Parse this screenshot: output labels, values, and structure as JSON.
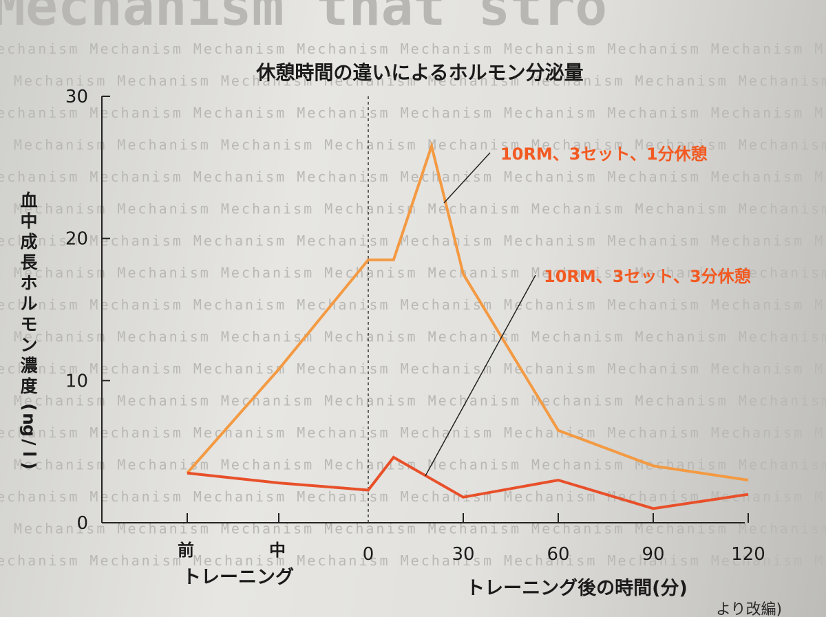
{
  "page": {
    "watermark_word": "Mechanism",
    "watermark_header": "Mechanism that stro",
    "footer_fragment": "より改編)"
  },
  "chart_data": {
    "type": "line",
    "title": "休憩時間の違いによるホルモン分泌量",
    "ylabel": "血中成長ホルモン濃度(ng/l)",
    "ylim": [
      0,
      30
    ],
    "yticks": [
      0,
      10,
      20,
      30
    ],
    "x_categories": [
      "前",
      "中"
    ],
    "x_group_label": "トレーニング",
    "xticks_after": [
      0,
      30,
      60,
      90,
      120
    ],
    "xlabel_after": "トレーニング後の時間(分)",
    "series": [
      {
        "name": "10RM、3セット、1分休憩",
        "color": "#f39a43",
        "points": [
          {
            "x": "前",
            "y": 3.5
          },
          {
            "x": "中",
            "y": 10.8
          },
          {
            "x": 0,
            "y": 18.5
          },
          {
            "x": 8,
            "y": 18.5
          },
          {
            "x": 20,
            "y": 26.5
          },
          {
            "x": 30,
            "y": 17.5
          },
          {
            "x": 60,
            "y": 6.5
          },
          {
            "x": 90,
            "y": 4
          },
          {
            "x": 120,
            "y": 3
          }
        ]
      },
      {
        "name": "10RM、3セット、3分休憩",
        "color": "#e8502a",
        "points": [
          {
            "x": "前",
            "y": 3.5
          },
          {
            "x": "中",
            "y": 2.8
          },
          {
            "x": 0,
            "y": 2.3
          },
          {
            "x": 8,
            "y": 4.6
          },
          {
            "x": 30,
            "y": 1.8
          },
          {
            "x": 60,
            "y": 3
          },
          {
            "x": 90,
            "y": 1
          },
          {
            "x": 120,
            "y": 2
          }
        ]
      }
    ],
    "annotation_color": "#f25a22"
  }
}
